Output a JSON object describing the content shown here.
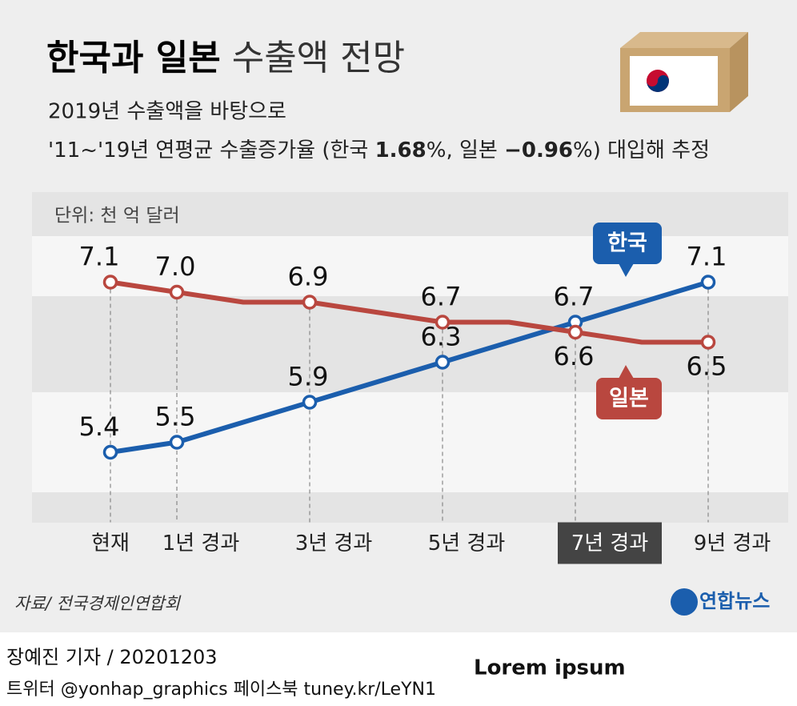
{
  "chart_data": {
    "type": "line",
    "title": {
      "bold": "한국과 일본",
      "light": "수출액 전망"
    },
    "subtitle": [
      "2019년 수출액을 바탕으로",
      [
        "'11~'19년 연평균 수출증가율 (한국 ",
        "1.68",
        "%, 일본 ",
        "−0.96",
        "%) 대입해 추정"
      ]
    ],
    "unit": "단위: 천 억 달러",
    "categories": [
      "현재",
      "1년 경과",
      null,
      "3년 경과",
      null,
      "5년 경과",
      null,
      "7년 경과",
      null,
      "9년 경과"
    ],
    "highlight_index": 7,
    "ylim": [
      4.7,
      8.0
    ],
    "series": [
      {
        "name": "한국",
        "color": "#1b5ead",
        "values": [
          5.4,
          5.5,
          5.7,
          5.9,
          6.1,
          6.3,
          6.5,
          6.7,
          6.9,
          7.1
        ],
        "value_labels": [
          "5.4",
          "5.5",
          null,
          "5.9",
          null,
          "6.3",
          null,
          "6.7",
          null,
          "7.1"
        ]
      },
      {
        "name": "일본",
        "color": "#b9473f",
        "values": [
          7.1,
          7.0,
          6.9,
          6.9,
          6.8,
          6.7,
          6.7,
          6.6,
          6.5,
          6.5
        ],
        "value_labels": [
          "7.1",
          "7.0",
          null,
          "6.9",
          null,
          "6.7",
          null,
          "6.6",
          null,
          "6.5"
        ]
      }
    ],
    "source": "자료/ 전국경제인연합회",
    "logo": "연합뉴스"
  },
  "footer": {
    "byline": "장예진 기자 / 20201203",
    "social": "트위터 @yonhap_graphics  페이스북 tuney.kr/LeYN1",
    "note": "Lorem ipsum"
  }
}
